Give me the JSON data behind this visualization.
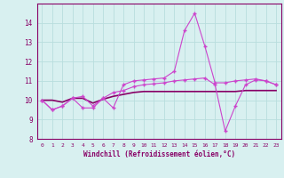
{
  "x": [
    0,
    1,
    2,
    3,
    4,
    5,
    6,
    7,
    8,
    9,
    10,
    11,
    12,
    13,
    14,
    15,
    16,
    17,
    18,
    19,
    20,
    21,
    22,
    23
  ],
  "line1": [
    10.0,
    9.5,
    9.7,
    10.1,
    9.6,
    9.6,
    10.1,
    10.4,
    10.5,
    10.7,
    10.8,
    10.85,
    10.9,
    11.0,
    11.05,
    11.1,
    11.15,
    10.8,
    8.4,
    9.7,
    10.8,
    11.05,
    11.0,
    10.8
  ],
  "line2": [
    10.0,
    9.5,
    9.7,
    10.1,
    10.2,
    9.7,
    10.1,
    9.6,
    10.8,
    11.0,
    11.05,
    11.1,
    11.15,
    11.5,
    13.6,
    14.5,
    12.8,
    10.9,
    10.9,
    11.0,
    11.05,
    11.1,
    11.0,
    10.8
  ],
  "line3": [
    10.0,
    10.0,
    9.9,
    10.1,
    10.1,
    9.85,
    10.05,
    10.2,
    10.3,
    10.4,
    10.45,
    10.45,
    10.45,
    10.45,
    10.45,
    10.45,
    10.45,
    10.45,
    10.45,
    10.45,
    10.5,
    10.5,
    10.5,
    10.5
  ],
  "line_color1": "#cc44cc",
  "line_color2": "#cc44cc",
  "line_color3": "#880066",
  "bg_color": "#d8f0f0",
  "grid_color": "#b8dede",
  "axis_color": "#880066",
  "tick_color": "#880066",
  "xlabel": "Windchill (Refroidissement éolien,°C)",
  "ylim": [
    8,
    15
  ],
  "yticks": [
    8,
    9,
    10,
    11,
    12,
    13,
    14
  ],
  "xlim_min": -0.5,
  "xlim_max": 23.5,
  "marker": "+",
  "markersize": 3.5,
  "linewidth_marked": 0.8,
  "linewidth_smooth": 1.2
}
